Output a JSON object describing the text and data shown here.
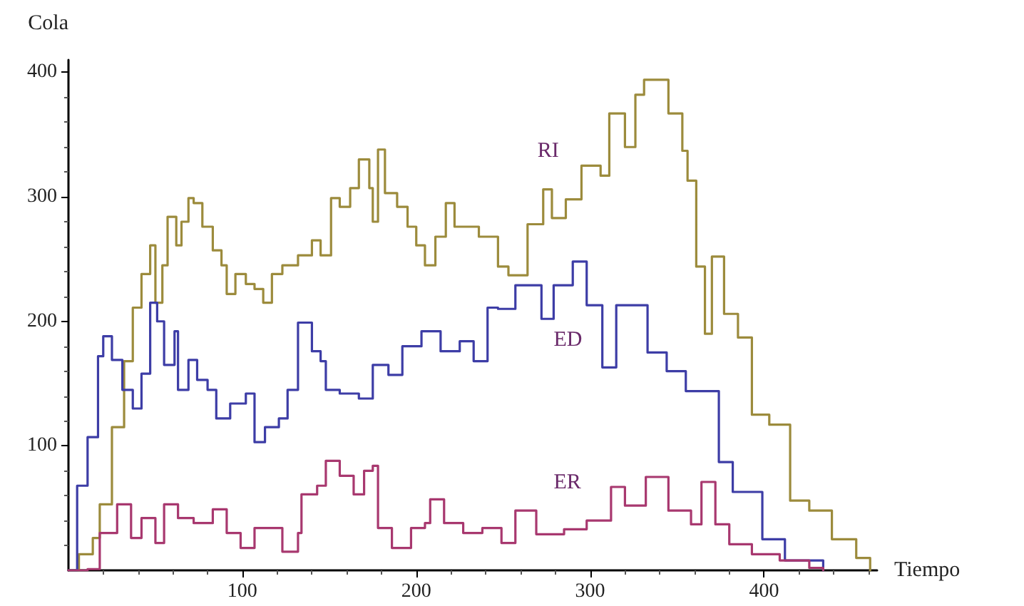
{
  "chart_data": {
    "type": "step",
    "xlabel": "Tiempo",
    "ylabel": "Cola",
    "xlim": [
      0,
      465
    ],
    "ylim": [
      0,
      410
    ],
    "xticks": [
      100,
      200,
      300,
      400
    ],
    "yticks": [
      100,
      200,
      300,
      400
    ],
    "grid": false,
    "legend": false,
    "marker": "none",
    "line_style": "solid",
    "series": [
      {
        "name": "RI",
        "color": "#9c8b3c",
        "x": [
          0,
          6,
          14,
          18,
          25,
          32,
          37,
          42,
          47,
          50,
          54,
          57,
          62,
          65,
          69,
          72,
          77,
          83,
          88,
          91,
          96,
          102,
          107,
          112,
          117,
          123,
          132,
          140,
          145,
          151,
          156,
          162,
          167,
          173,
          175,
          178,
          182,
          189,
          195,
          200,
          205,
          211,
          217,
          222,
          230,
          236,
          247,
          253,
          264,
          273,
          278,
          286,
          295,
          306,
          311,
          320,
          326,
          331,
          339,
          345,
          353,
          356,
          361,
          366,
          370,
          377,
          385,
          393,
          403,
          415,
          426,
          439,
          453,
          461
        ],
        "values": [
          0,
          13,
          26,
          53,
          115,
          168,
          211,
          238,
          261,
          215,
          245,
          284,
          261,
          280,
          299,
          295,
          276,
          257,
          245,
          222,
          238,
          230,
          226,
          215,
          238,
          245,
          253,
          265,
          253,
          299,
          292,
          307,
          330,
          307,
          280,
          338,
          303,
          292,
          276,
          261,
          245,
          268,
          295,
          276,
          276,
          268,
          244,
          237,
          278,
          306,
          283,
          298,
          325,
          317,
          367,
          340,
          382,
          394,
          394,
          367,
          337,
          313,
          244,
          190,
          252,
          206,
          187,
          125,
          117,
          56,
          48,
          25,
          10,
          0
        ]
      },
      {
        "name": "ED",
        "color": "#3d3da6",
        "x": [
          0,
          5,
          11,
          17,
          20,
          25,
          31,
          37,
          42,
          47,
          51,
          55,
          61,
          63,
          69,
          74,
          80,
          85,
          93,
          102,
          107,
          113,
          121,
          126,
          132,
          140,
          145,
          148,
          156,
          167,
          175,
          184,
          192,
          203,
          214,
          225,
          233,
          241,
          247,
          257,
          272,
          279,
          290,
          298,
          307,
          315,
          326,
          333,
          344,
          355,
          361,
          374,
          382,
          399,
          412,
          434
        ],
        "values": [
          0,
          68,
          107,
          172,
          188,
          169,
          145,
          130,
          158,
          215,
          200,
          165,
          192,
          145,
          169,
          153,
          145,
          122,
          134,
          142,
          103,
          115,
          122,
          145,
          199,
          176,
          168,
          145,
          142,
          138,
          165,
          157,
          180,
          192,
          176,
          184,
          168,
          211,
          210,
          229,
          202,
          229,
          248,
          213,
          163,
          213,
          213,
          175,
          160,
          144,
          144,
          87,
          63,
          25,
          8,
          0
        ]
      },
      {
        "name": "ER",
        "color": "#a8386f",
        "x": [
          0,
          11,
          18,
          28,
          36,
          42,
          50,
          55,
          63,
          72,
          83,
          91,
          99,
          107,
          115,
          123,
          132,
          134,
          143,
          148,
          156,
          164,
          170,
          175,
          178,
          186,
          197,
          205,
          208,
          216,
          227,
          238,
          249,
          257,
          269,
          285,
          298,
          312,
          320,
          332,
          345,
          358,
          364,
          369,
          372,
          380,
          393,
          409,
          426,
          434
        ],
        "values": [
          0,
          1,
          30,
          53,
          26,
          42,
          22,
          53,
          42,
          38,
          49,
          30,
          18,
          34,
          34,
          15,
          30,
          61,
          68,
          88,
          76,
          61,
          80,
          84,
          34,
          18,
          34,
          38,
          57,
          38,
          30,
          34,
          22,
          48,
          29,
          33,
          40,
          67,
          52,
          75,
          48,
          37,
          71,
          71,
          37,
          21,
          13,
          8,
          2,
          0
        ]
      }
    ]
  }
}
